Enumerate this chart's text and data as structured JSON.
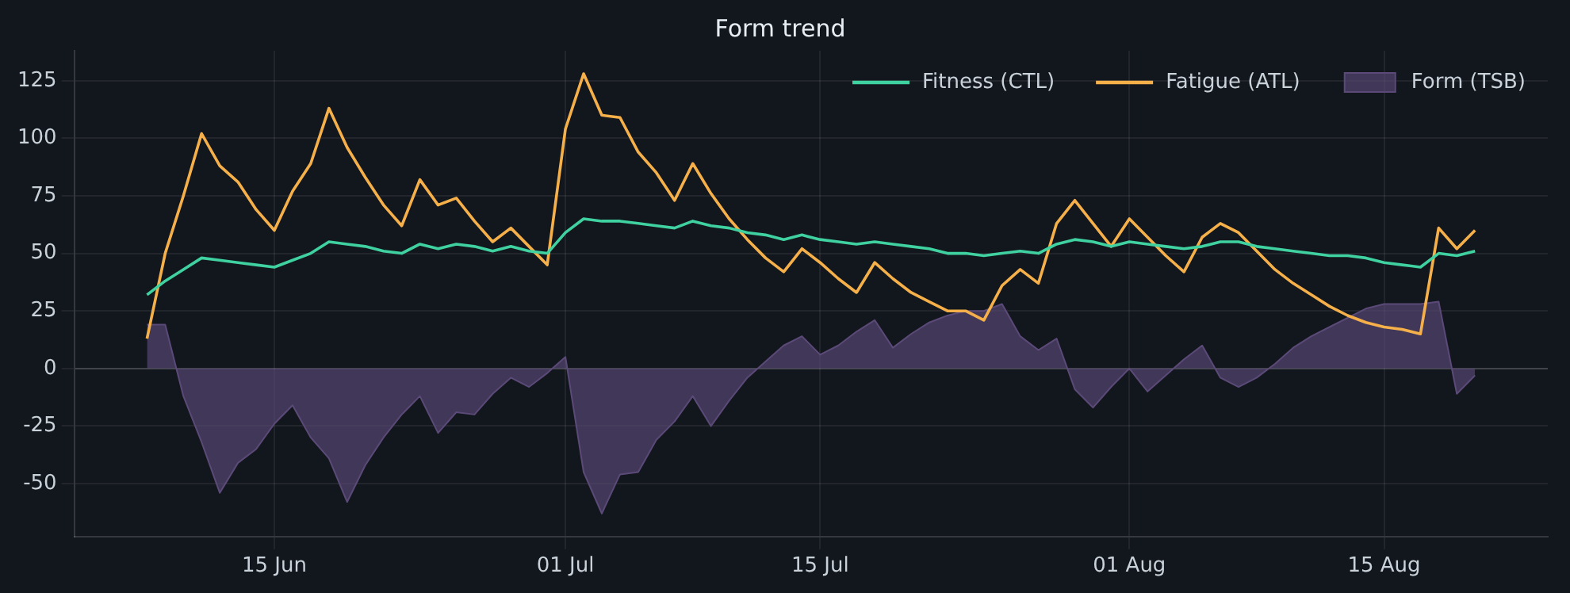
{
  "chart_data": {
    "type": "line",
    "title": "Form trend",
    "x": [
      "--06-08",
      "--06-09",
      "--06-10",
      "--06-11",
      "--06-12",
      "--06-13",
      "--06-14",
      "--06-15",
      "--06-16",
      "--06-17",
      "--06-18",
      "--06-19",
      "--06-20",
      "--06-21",
      "--06-22",
      "--06-23",
      "--06-24",
      "--06-25",
      "--06-26",
      "--06-27",
      "--06-28",
      "--06-29",
      "--06-30",
      "--07-01",
      "--07-02",
      "--07-03",
      "--07-04",
      "--07-05",
      "--07-06",
      "--07-07",
      "--07-08",
      "--07-09",
      "--07-10",
      "--07-11",
      "--07-12",
      "--07-13",
      "--07-14",
      "--07-15",
      "--07-16",
      "--07-17",
      "--07-18",
      "--07-19",
      "--07-20",
      "--07-21",
      "--07-22",
      "--07-23",
      "--07-24",
      "--07-25",
      "--07-26",
      "--07-27",
      "--07-28",
      "--07-29",
      "--07-30",
      "--07-31",
      "--08-01",
      "--08-02",
      "--08-03",
      "--08-04",
      "--08-05",
      "--08-06",
      "--08-07",
      "--08-08",
      "--08-09",
      "--08-10",
      "--08-11",
      "--08-12",
      "--08-13",
      "--08-14",
      "--08-15",
      "--08-16",
      "--08-17",
      "--08-18",
      "--08-19",
      "--08-20"
    ],
    "series": [
      {
        "name": "Fitness (CTL)",
        "type": "line",
        "color": "#3fd1a0",
        "values": [
          32,
          38,
          43,
          48,
          47,
          46,
          45,
          44,
          47,
          50,
          55,
          54,
          53,
          51,
          50,
          54,
          52,
          54,
          53,
          51,
          53,
          51,
          50,
          59,
          65,
          64,
          64,
          63,
          62,
          61,
          64,
          62,
          61,
          59,
          58,
          56,
          58,
          56,
          55,
          54,
          55,
          54,
          53,
          52,
          50,
          50,
          49,
          50,
          51,
          50,
          54,
          56,
          55,
          53,
          55,
          54,
          53,
          52,
          53,
          55,
          55,
          53,
          52,
          51,
          50,
          49,
          49,
          48,
          46,
          45,
          44,
          50,
          49,
          51
        ]
      },
      {
        "name": "Fatigue (ATL)",
        "type": "line",
        "color": "#f5b04a",
        "values": [
          13,
          50,
          75,
          102,
          88,
          81,
          69,
          60,
          77,
          89,
          113,
          96,
          83,
          71,
          62,
          82,
          71,
          74,
          64,
          55,
          61,
          53,
          45,
          104,
          128,
          110,
          109,
          94,
          85,
          73,
          89,
          76,
          65,
          56,
          48,
          42,
          52,
          46,
          39,
          33,
          46,
          39,
          33,
          29,
          25,
          25,
          21,
          36,
          43,
          37,
          63,
          73,
          63,
          53,
          65,
          57,
          49,
          42,
          57,
          63,
          59,
          51,
          43,
          37,
          32,
          27,
          23,
          20,
          18,
          17,
          15,
          61,
          52,
          60
        ]
      },
      {
        "name": "Form (TSB)",
        "type": "area",
        "color": "#5b4a78",
        "values": [
          19,
          19,
          -12,
          -32,
          -54,
          -41,
          -35,
          -24,
          -16,
          -30,
          -39,
          -58,
          -42,
          -30,
          -20,
          -12,
          -28,
          -19,
          -20,
          -11,
          -4,
          -8,
          -2,
          5,
          -45,
          -63,
          -46,
          -45,
          -31,
          -23,
          -12,
          -25,
          -14,
          -4,
          3,
          10,
          14,
          6,
          10,
          16,
          21,
          9,
          15,
          20,
          23,
          25,
          25,
          28,
          14,
          8,
          13,
          -9,
          -17,
          -8,
          0,
          -10,
          -3,
          4,
          10,
          -4,
          -8,
          -4,
          2,
          9,
          14,
          18,
          22,
          26,
          28,
          28,
          28,
          29,
          -11,
          -3
        ]
      }
    ],
    "xlim": [
      "--06-04",
      "--08-24"
    ],
    "xticks": [
      {
        "value": "--06-15",
        "label": "15 Jun"
      },
      {
        "value": "--07-01",
        "label": "01 Jul"
      },
      {
        "value": "--07-15",
        "label": "15 Jul"
      },
      {
        "value": "--08-01",
        "label": "01 Aug"
      },
      {
        "value": "--08-15",
        "label": "15 Aug"
      }
    ],
    "ylim": [
      -73,
      138
    ],
    "yticks": [
      -50,
      -25,
      0,
      25,
      50,
      75,
      100,
      125
    ],
    "grid": true,
    "legend": "top right",
    "marker": "none",
    "line_style": "solid"
  }
}
